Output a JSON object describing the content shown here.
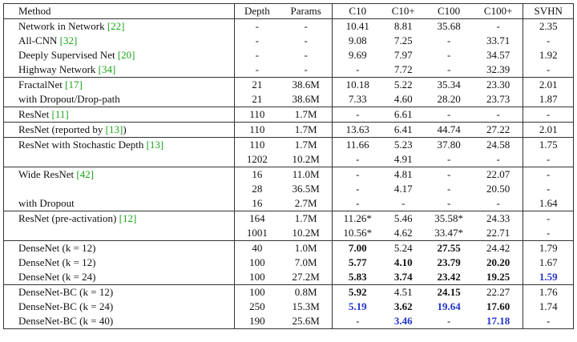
{
  "table": {
    "header": [
      "Method",
      "Depth",
      "Params",
      "C10",
      "C10+",
      "C100",
      "C100+",
      "SVHN"
    ],
    "groups": [
      {
        "rows": [
          [
            {
              "text": "Network in Network",
              "cite": "[22]"
            },
            "-",
            "-",
            "10.41",
            "8.81",
            "35.68",
            "-",
            "2.35"
          ],
          [
            {
              "text": "All-CNN",
              "cite": "[32]"
            },
            "-",
            "-",
            "9.08",
            "7.25",
            "-",
            "33.71",
            "-"
          ],
          [
            {
              "text": "Deeply Supervised Net",
              "cite": "[20]"
            },
            "-",
            "-",
            "9.69",
            "7.97",
            "-",
            "34.57",
            "1.92"
          ],
          [
            {
              "text": "Highway Network",
              "cite": "[34]"
            },
            "-",
            "-",
            "-",
            "7.72",
            "-",
            "32.39",
            "-"
          ]
        ]
      },
      {
        "rows": [
          [
            {
              "text": "FractalNet",
              "cite": "[17]"
            },
            "21",
            "38.6M",
            "10.18",
            "5.22",
            "35.34",
            "23.30",
            "2.01"
          ],
          [
            {
              "text": "with Dropout/Drop-path"
            },
            "21",
            "38.6M",
            "7.33",
            "4.60",
            "28.20",
            "23.73",
            "1.87"
          ]
        ]
      },
      {
        "rows": [
          [
            {
              "text": "ResNet",
              "cite": "[11]"
            },
            "110",
            "1.7M",
            "-",
            "6.61",
            "-",
            "-",
            "-"
          ]
        ]
      },
      {
        "rows": [
          [
            {
              "text": "ResNet (reported by",
              "cite": "[13]",
              "after": ")"
            },
            "110",
            "1.7M",
            "13.63",
            "6.41",
            "44.74",
            "27.22",
            "2.01"
          ]
        ]
      },
      {
        "rows": [
          [
            {
              "text": "ResNet with Stochastic Depth",
              "cite": "[13]"
            },
            "110",
            "1.7M",
            "11.66",
            "5.23",
            "37.80",
            "24.58",
            "1.75"
          ],
          [
            null,
            "1202",
            "10.2M",
            "-",
            "4.91",
            "-",
            "-",
            "-"
          ]
        ]
      },
      {
        "rows": [
          [
            {
              "text": "Wide ResNet",
              "cite": "[42]"
            },
            "16",
            "11.0M",
            "-",
            "4.81",
            "-",
            "22.07",
            "-"
          ],
          [
            null,
            "28",
            "36.5M",
            "-",
            "4.17",
            "-",
            "20.50",
            "-"
          ],
          [
            {
              "text": "with Dropout"
            },
            "16",
            "2.7M",
            "-",
            "-",
            "-",
            "-",
            "1.64"
          ]
        ]
      },
      {
        "rows": [
          [
            {
              "text": "ResNet (pre-activation)",
              "cite": "[12]"
            },
            "164",
            "1.7M",
            "11.26*",
            "5.46",
            "35.58*",
            "24.33",
            "-"
          ],
          [
            null,
            "1001",
            "10.2M",
            "10.56*",
            "4.62",
            "33.47*",
            "22.71",
            "-"
          ]
        ]
      },
      {
        "rows": [
          [
            {
              "text": "DenseNet (k = 12)"
            },
            "40",
            "1.0M",
            {
              "text": "7.00",
              "style": "bold"
            },
            "5.24",
            {
              "text": "27.55",
              "style": "bold"
            },
            "24.42",
            "1.79"
          ],
          [
            {
              "text": "DenseNet (k = 12)"
            },
            "100",
            "7.0M",
            {
              "text": "5.77",
              "style": "bold"
            },
            {
              "text": "4.10",
              "style": "bold"
            },
            {
              "text": "23.79",
              "style": "bold"
            },
            {
              "text": "20.20",
              "style": "bold"
            },
            "1.67"
          ],
          [
            {
              "text": "DenseNet (k = 24)"
            },
            "100",
            "27.2M",
            {
              "text": "5.83",
              "style": "bold"
            },
            {
              "text": "3.74",
              "style": "bold"
            },
            {
              "text": "23.42",
              "style": "bold"
            },
            {
              "text": "19.25",
              "style": "bold"
            },
            {
              "text": "1.59",
              "style": "best"
            }
          ]
        ]
      },
      {
        "rows": [
          [
            {
              "text": "DenseNet-BC (k = 12)"
            },
            "100",
            "0.8M",
            {
              "text": "5.92",
              "style": "bold"
            },
            "4.51",
            {
              "text": "24.15",
              "style": "bold"
            },
            "22.27",
            "1.76"
          ],
          [
            {
              "text": "DenseNet-BC (k = 24)"
            },
            "250",
            "15.3M",
            {
              "text": "5.19",
              "style": "best"
            },
            {
              "text": "3.62",
              "style": "bold"
            },
            {
              "text": "19.64",
              "style": "best"
            },
            {
              "text": "17.60",
              "style": "bold"
            },
            "1.74"
          ],
          [
            {
              "text": "DenseNet-BC (k = 40)"
            },
            "190",
            "25.6M",
            "-",
            {
              "text": "3.46",
              "style": "best"
            },
            "-",
            {
              "text": "17.18",
              "style": "best"
            },
            "-"
          ]
        ]
      }
    ]
  }
}
